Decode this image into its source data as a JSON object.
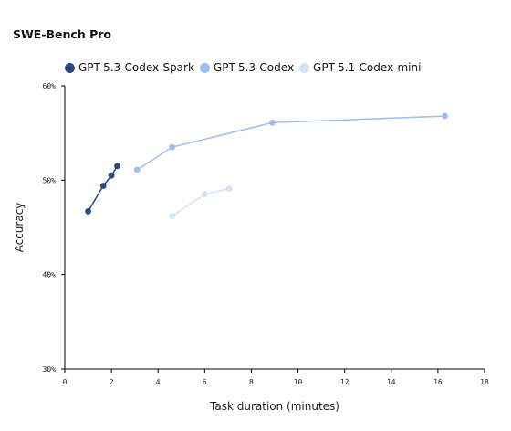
{
  "chart_data": {
    "type": "line",
    "title": "SWE-Bench Pro",
    "xlabel": "Task duration (minutes)",
    "ylabel": "Accuracy",
    "xlim": [
      0,
      18
    ],
    "ylim": [
      30,
      60
    ],
    "x_ticks": [
      0,
      2,
      4,
      6,
      8,
      10,
      12,
      14,
      16,
      18
    ],
    "y_ticks": [
      30,
      40,
      50,
      60
    ],
    "y_tick_labels": [
      "30%",
      "40%",
      "50%",
      "60%"
    ],
    "grid": false,
    "legend_position": "top-left",
    "series": [
      {
        "name": "GPT-5.3-Codex-Spark",
        "color": "#2b4a85",
        "points": [
          [
            1.0,
            46.7
          ],
          [
            1.65,
            49.4
          ],
          [
            2.0,
            50.5
          ],
          [
            2.25,
            51.5
          ]
        ]
      },
      {
        "name": "GPT-5.3-Codex",
        "color": "#9fbdf0",
        "points": [
          [
            3.1,
            51.1
          ],
          [
            4.6,
            53.5
          ],
          [
            8.9,
            56.1
          ],
          [
            16.3,
            56.8
          ]
        ]
      },
      {
        "name": "GPT-5.1-Codex-mini",
        "color": "#d3e3f8",
        "points": [
          [
            4.6,
            46.2
          ],
          [
            6.0,
            48.5
          ],
          [
            7.05,
            49.1
          ]
        ]
      }
    ]
  }
}
